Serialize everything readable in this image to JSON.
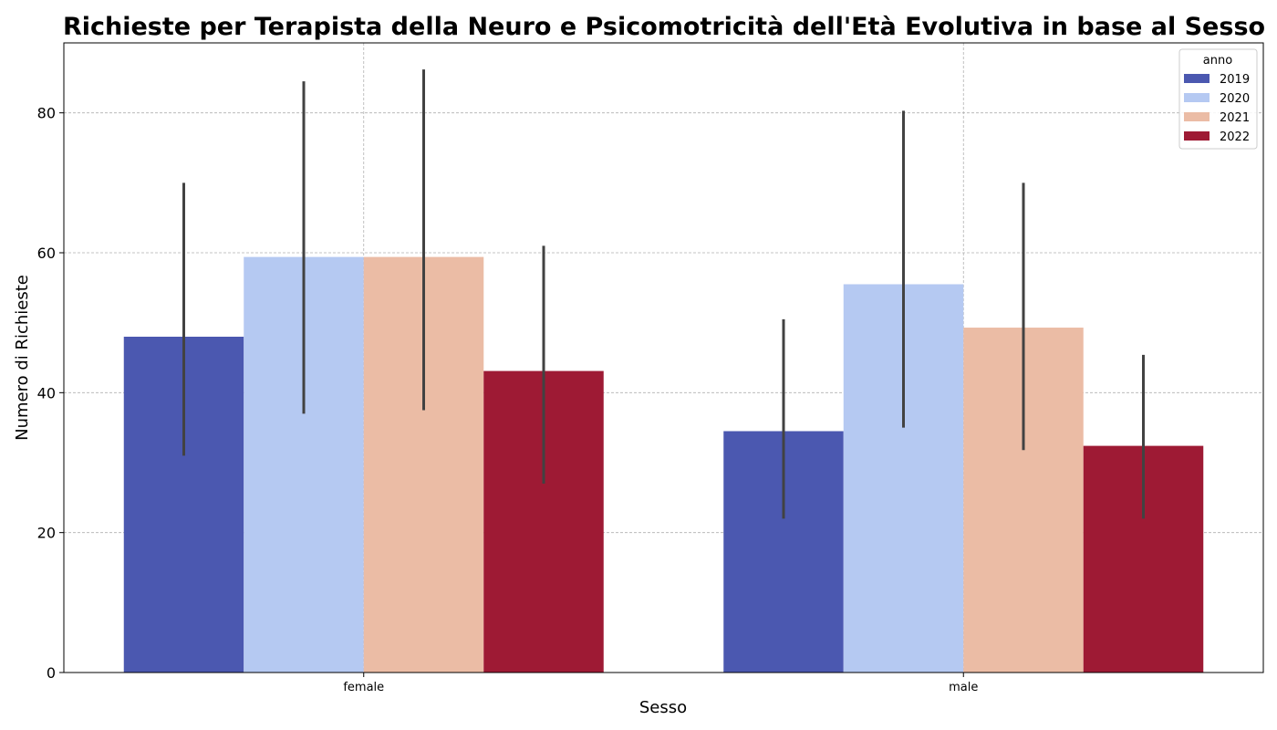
{
  "chart_data": {
    "type": "bar",
    "title": "Richieste per Terapista della Neuro e Psicomotricità dell'Età Evolutiva in base al Sesso",
    "xlabel": "Sesso",
    "ylabel": "Numero di Richieste",
    "categories": [
      "female",
      "male"
    ],
    "ylim": [
      0,
      90
    ],
    "yticks": [
      0,
      20,
      40,
      60,
      80
    ],
    "grid": true,
    "legend": {
      "title": "anno",
      "placement": "top-right"
    },
    "series": [
      {
        "name": "2019",
        "color": "#4b58b0",
        "values": [
          48.0,
          34.5
        ],
        "ci_low": [
          31.0,
          22.0
        ],
        "ci_high": [
          70.0,
          50.5
        ]
      },
      {
        "name": "2020",
        "color": "#b5c9f2",
        "values": [
          59.4,
          55.5
        ],
        "ci_low": [
          37.0,
          35.0
        ],
        "ci_high": [
          84.5,
          80.3
        ]
      },
      {
        "name": "2021",
        "color": "#ebbca5",
        "values": [
          59.4,
          49.3
        ],
        "ci_low": [
          37.5,
          31.8
        ],
        "ci_high": [
          86.2,
          70.0
        ]
      },
      {
        "name": "2022",
        "color": "#9e1a34",
        "values": [
          43.1,
          32.4
        ],
        "ci_low": [
          27.0,
          22.0
        ],
        "ci_high": [
          61.0,
          45.4
        ]
      }
    ]
  }
}
